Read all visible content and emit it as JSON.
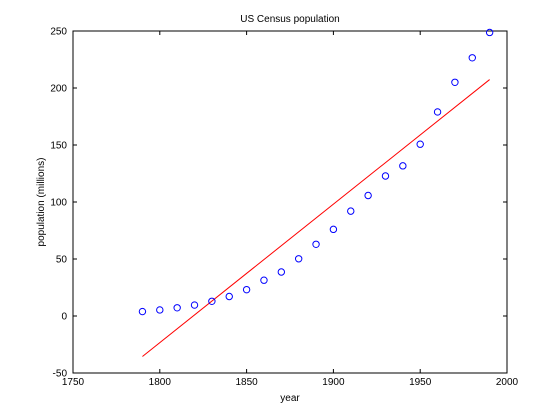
{
  "chart_data": {
    "type": "scatter",
    "title": "US Census population",
    "xlabel": "year",
    "ylabel": "population (millions)",
    "xlim": [
      1750,
      2000
    ],
    "ylim": [
      -50,
      250
    ],
    "xticks": [
      1750,
      1800,
      1850,
      1900,
      1950,
      2000
    ],
    "yticks": [
      -50,
      0,
      50,
      100,
      150,
      200,
      250
    ],
    "grid": false,
    "series": [
      {
        "marker": "circle",
        "color": "#0000ff",
        "x": [
          1790,
          1800,
          1810,
          1820,
          1830,
          1840,
          1850,
          1860,
          1870,
          1880,
          1890,
          1900,
          1910,
          1920,
          1930,
          1940,
          1950,
          1960,
          1970,
          1980,
          1990
        ],
        "y": [
          3.9,
          5.3,
          7.2,
          9.6,
          12.9,
          17.1,
          23.1,
          31.4,
          38.6,
          50.2,
          62.9,
          76.0,
          92.0,
          105.7,
          122.8,
          131.7,
          150.7,
          179.0,
          205.0,
          226.5,
          248.7
        ]
      },
      {
        "line": "solid",
        "color": "#ff0000",
        "x": [
          1790,
          1990
        ],
        "y": [
          -35.5,
          207.4
        ]
      }
    ]
  }
}
